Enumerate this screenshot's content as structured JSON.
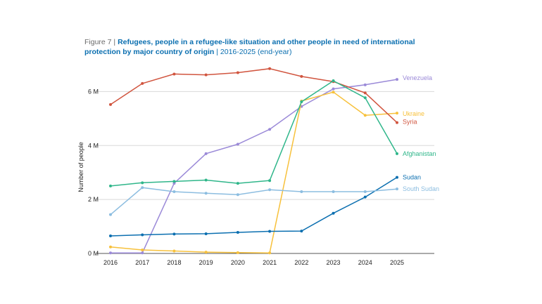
{
  "figure": {
    "label": "Figure 7 |",
    "title": "Refugees, people in a refugee-like situation and other people in need of international protection by major country of origin",
    "subtitle": "| 2016-2025 (end-year)"
  },
  "chart_data": {
    "type": "line",
    "title": "Refugees, people in a refugee-like situation and other people in need of international protection by major country of origin",
    "xlabel": "",
    "ylabel": "Number of people",
    "x": [
      "2016",
      "2017",
      "2018",
      "2019",
      "2020",
      "2021",
      "2022",
      "2023",
      "2024",
      "2025"
    ],
    "ylim": [
      0,
      7
    ],
    "yticks": [
      0,
      2,
      4,
      6
    ],
    "ytick_labels": [
      "0 M",
      "2 M",
      "4 M",
      "6 M"
    ],
    "grid": "horizontal",
    "legend": "inline labels at line ends",
    "series": [
      {
        "name": "Venezuela",
        "color": "#9b8ad8",
        "values": [
          0.02,
          0.02,
          2.6,
          3.7,
          4.05,
          4.6,
          5.45,
          6.1,
          6.25,
          6.45
        ]
      },
      {
        "name": "Ukraine",
        "color": "#f7c13c",
        "values": [
          0.24,
          0.13,
          0.09,
          0.05,
          0.03,
          0.02,
          5.65,
          5.98,
          5.12,
          5.2
        ]
      },
      {
        "name": "Syria",
        "color": "#d1553f",
        "values": [
          5.52,
          6.3,
          6.65,
          6.62,
          6.7,
          6.85,
          6.56,
          6.37,
          5.95,
          4.85
        ]
      },
      {
        "name": "Afghanistan",
        "color": "#2fb68a",
        "values": [
          2.5,
          2.62,
          2.67,
          2.72,
          2.6,
          2.7,
          5.62,
          6.4,
          5.77,
          3.7
        ]
      },
      {
        "name": "Sudan",
        "color": "#0b6fb0",
        "values": [
          0.65,
          0.69,
          0.72,
          0.73,
          0.78,
          0.82,
          0.83,
          1.49,
          2.09,
          2.82
        ]
      },
      {
        "name": "South Sudan",
        "color": "#8cbde0",
        "values": [
          1.44,
          2.44,
          2.29,
          2.23,
          2.18,
          2.36,
          2.29,
          2.29,
          2.29,
          2.39
        ]
      }
    ]
  }
}
